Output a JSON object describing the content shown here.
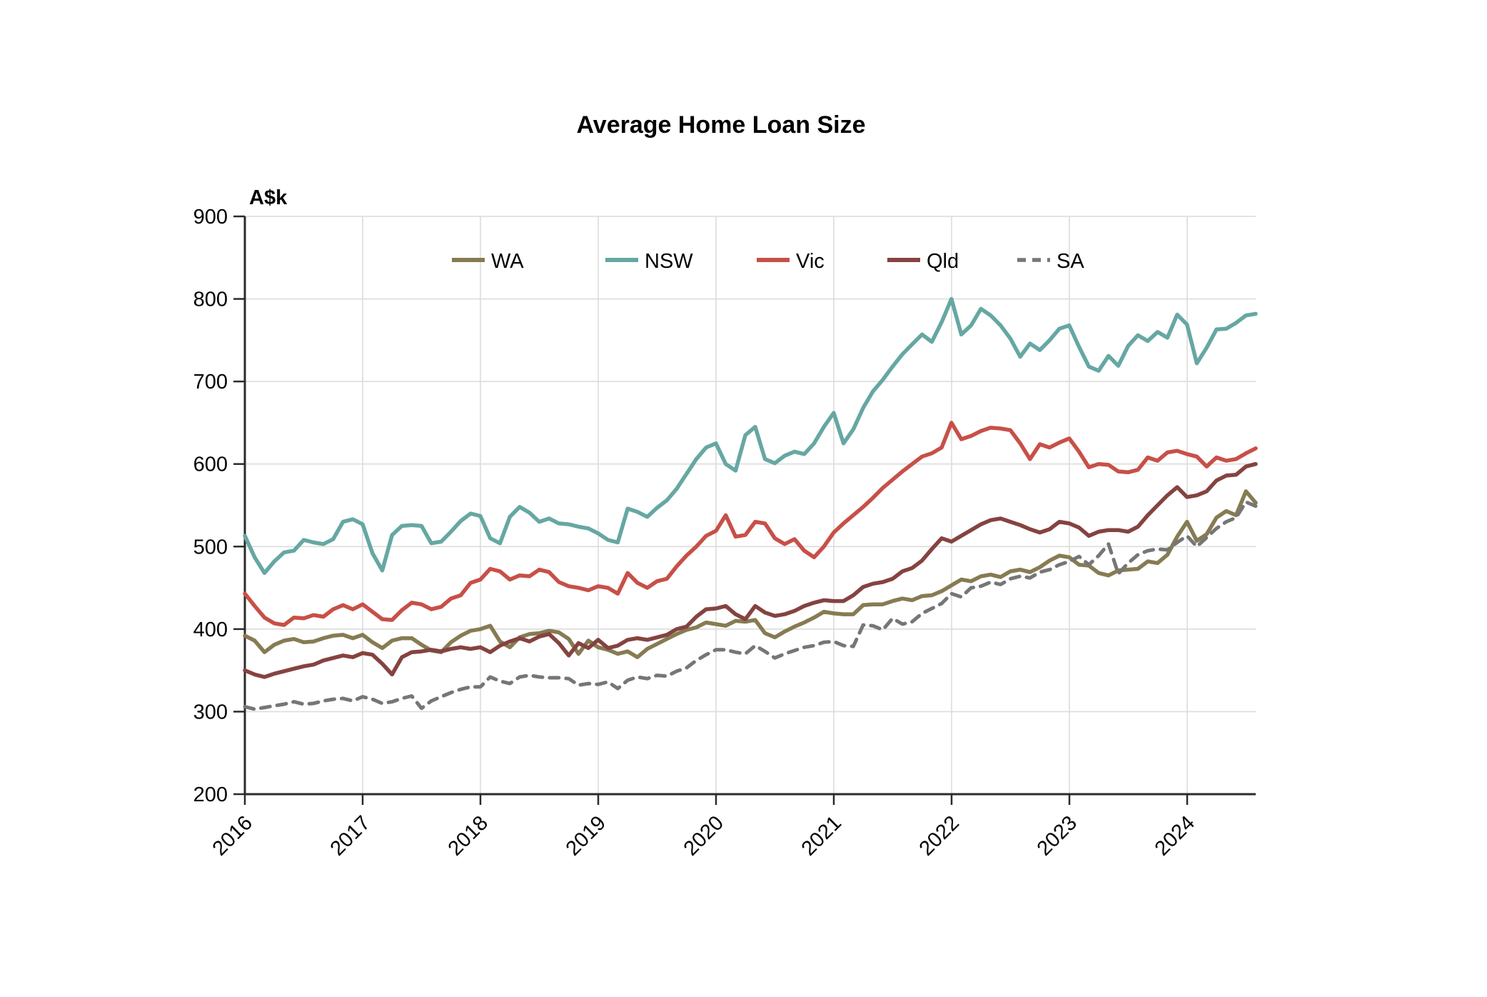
{
  "title": "Average Home Loan Size",
  "axis_unit_label": "A$k",
  "chart_data": {
    "type": "line",
    "title": "Average Home Loan Size",
    "xlabel": "",
    "ylabel": "A$k",
    "ylim": [
      200,
      900
    ],
    "ytick_values": [
      200,
      300,
      400,
      500,
      600,
      700,
      800,
      900
    ],
    "xtick_labels": [
      "2016",
      "2017",
      "2018",
      "2019",
      "2020",
      "2021",
      "2022",
      "2023",
      "2024"
    ],
    "x_unit": "month",
    "x_start": "2016-01",
    "x_end": "2024-08",
    "grid": true,
    "legend_position": "top-inside",
    "grid_color": "#dcdcdc",
    "axis_color": "#2b2b2b",
    "series": [
      {
        "name": "WA",
        "color": "#867B52",
        "style": "solid",
        "values": [
          392,
          386,
          372,
          381,
          386,
          388,
          384,
          385,
          389,
          392,
          393,
          389,
          393,
          384,
          377,
          386,
          389,
          389,
          381,
          374,
          372,
          384,
          392,
          398,
          400,
          404,
          385,
          378,
          390,
          394,
          395,
          398,
          396,
          388,
          370,
          386,
          378,
          375,
          370,
          373,
          366,
          376,
          382,
          388,
          394,
          399,
          402,
          408,
          406,
          404,
          410,
          409,
          411,
          395,
          390,
          397,
          403,
          408,
          414,
          421,
          419,
          418,
          418,
          429,
          430,
          430,
          434,
          437,
          435,
          440,
          441,
          446,
          453,
          460,
          458,
          464,
          466,
          463,
          470,
          472,
          469,
          475,
          483,
          489,
          487,
          478,
          477,
          468,
          465,
          471,
          472,
          473,
          482,
          480,
          490,
          512,
          530,
          507,
          515,
          535,
          543,
          538,
          567,
          553
        ]
      },
      {
        "name": "NSW",
        "color": "#66A7A3",
        "style": "solid",
        "values": [
          513,
          487,
          468,
          482,
          493,
          495,
          508,
          505,
          503,
          509,
          530,
          533,
          527,
          492,
          471,
          514,
          525,
          526,
          525,
          504,
          506,
          518,
          531,
          540,
          537,
          510,
          504,
          536,
          548,
          541,
          530,
          534,
          528,
          527,
          524,
          522,
          516,
          508,
          505,
          546,
          542,
          536,
          547,
          556,
          570,
          588,
          606,
          620,
          625,
          600,
          592,
          635,
          645,
          606,
          601,
          610,
          615,
          612,
          625,
          645,
          662,
          625,
          642,
          668,
          688,
          702,
          718,
          733,
          745,
          757,
          748,
          772,
          800,
          757,
          768,
          788,
          780,
          768,
          752,
          730,
          746,
          738,
          750,
          764,
          768,
          742,
          718,
          713,
          731,
          719,
          743,
          756,
          749,
          760,
          753,
          781,
          769,
          722,
          741,
          763,
          764,
          771,
          780,
          782
        ]
      },
      {
        "name": "Vic",
        "color": "#C75048",
        "style": "solid",
        "values": [
          443,
          428,
          414,
          407,
          405,
          414,
          413,
          417,
          415,
          424,
          429,
          424,
          430,
          421,
          412,
          411,
          423,
          432,
          430,
          424,
          427,
          437,
          441,
          456,
          460,
          473,
          470,
          460,
          465,
          464,
          472,
          469,
          457,
          452,
          450,
          447,
          452,
          450,
          443,
          468,
          456,
          450,
          458,
          461,
          476,
          489,
          500,
          513,
          519,
          538,
          512,
          514,
          530,
          528,
          510,
          503,
          509,
          495,
          487,
          500,
          517,
          528,
          538,
          548,
          559,
          571,
          581,
          591,
          600,
          609,
          613,
          620,
          650,
          630,
          634,
          640,
          644,
          643,
          641,
          625,
          606,
          624,
          620,
          626,
          631,
          615,
          596,
          600,
          599,
          591,
          590,
          593,
          608,
          604,
          614,
          616,
          612,
          609,
          597,
          608,
          604,
          606,
          613,
          619
        ]
      },
      {
        "name": "Qld",
        "color": "#854340",
        "style": "solid",
        "values": [
          350,
          345,
          342,
          346,
          349,
          352,
          355,
          357,
          362,
          365,
          368,
          366,
          371,
          369,
          358,
          345,
          366,
          372,
          373,
          375,
          373,
          376,
          378,
          376,
          378,
          372,
          380,
          385,
          389,
          385,
          391,
          394,
          383,
          368,
          383,
          377,
          387,
          377,
          380,
          387,
          389,
          387,
          390,
          393,
          400,
          403,
          415,
          424,
          425,
          428,
          418,
          412,
          428,
          420,
          416,
          418,
          422,
          428,
          432,
          435,
          434,
          434,
          441,
          451,
          455,
          457,
          461,
          470,
          474,
          483,
          497,
          510,
          506,
          513,
          520,
          527,
          532,
          534,
          530,
          526,
          521,
          517,
          521,
          530,
          528,
          523,
          513,
          518,
          520,
          520,
          518,
          524,
          538,
          550,
          562,
          572,
          560,
          562,
          567,
          580,
          586,
          587,
          597,
          600
        ]
      },
      {
        "name": "SA",
        "color": "#767676",
        "style": "dashed",
        "values": [
          306,
          303,
          305,
          307,
          309,
          312,
          309,
          310,
          313,
          315,
          316,
          313,
          318,
          315,
          310,
          312,
          316,
          319,
          304,
          313,
          318,
          323,
          327,
          330,
          330,
          342,
          337,
          334,
          342,
          344,
          342,
          341,
          341,
          340,
          332,
          334,
          333,
          336,
          328,
          338,
          342,
          340,
          344,
          343,
          349,
          353,
          362,
          369,
          375,
          375,
          372,
          370,
          380,
          373,
          365,
          370,
          374,
          378,
          380,
          384,
          385,
          380,
          379,
          405,
          404,
          399,
          413,
          406,
          409,
          419,
          425,
          431,
          443,
          439,
          450,
          452,
          457,
          454,
          461,
          464,
          462,
          469,
          472,
          478,
          482,
          488,
          478,
          489,
          503,
          467,
          480,
          490,
          495,
          497,
          496,
          505,
          513,
          500,
          511,
          522,
          530,
          535,
          554,
          549
        ]
      }
    ]
  }
}
